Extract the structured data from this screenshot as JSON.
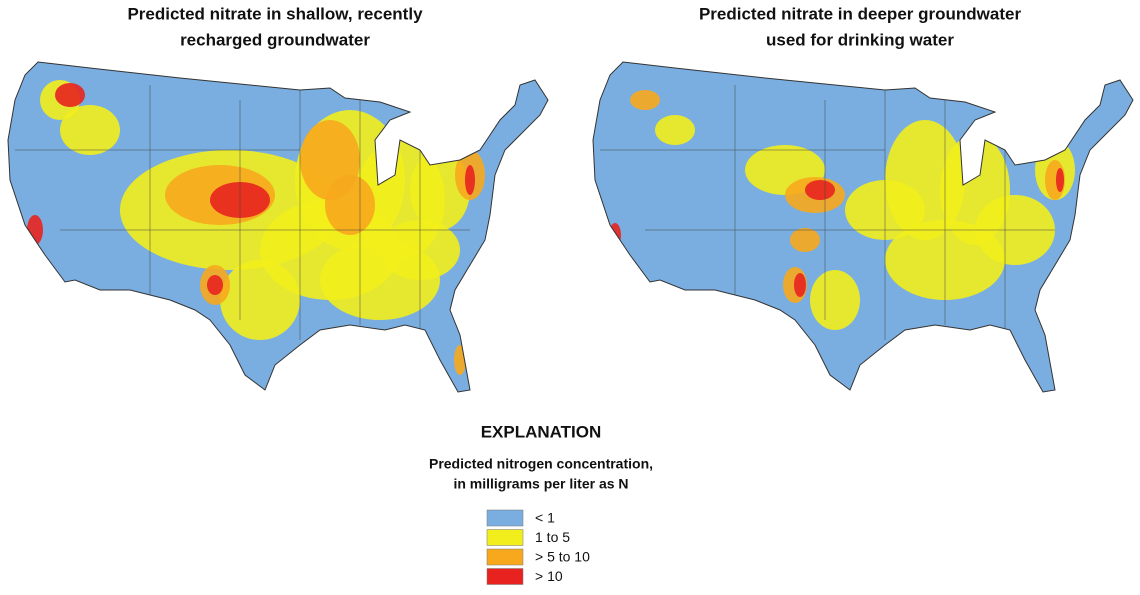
{
  "maps": [
    {
      "title": [
        "Predicted nitrate in shallow, recently",
        "recharged groundwater"
      ]
    },
    {
      "title": [
        "Predicted nitrate in deeper groundwater",
        "used for drinking water"
      ]
    }
  ],
  "legend": {
    "title": "EXPLANATION",
    "subtitle": [
      "Predicted nitrogen concentration,",
      "in milligrams per liter as N"
    ],
    "items": [
      {
        "label": "< 1",
        "color": "#7aaee0"
      },
      {
        "label": "1 to 5",
        "color": "#f2ee1c"
      },
      {
        "label": "> 5 to 10",
        "color": "#f7a81d"
      },
      {
        "label": "> 10",
        "color": "#e8231f"
      }
    ]
  }
}
